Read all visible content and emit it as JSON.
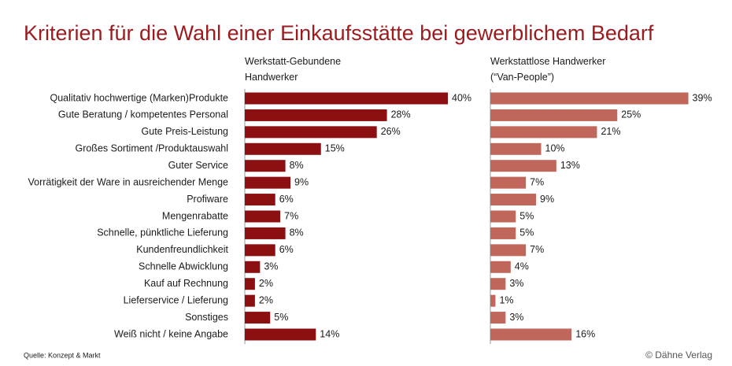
{
  "chart_data": {
    "type": "bar",
    "orientation": "horizontal",
    "title": "Kriterien für die Wahl einer Einkaufsstätte bei gewerblichem Bedarf",
    "categories": [
      "Qualitativ hochwertige (Marken)Produkte",
      "Gute Beratung / kompetentes Personal",
      "Gute Preis-Leistung",
      "Großes Sortiment /Produktauswahl",
      "Guter Service",
      "Vorrätigkeit der Ware in ausreichender Menge",
      "Profiware",
      "Mengenrabatte",
      "Schnelle, pünktliche Lieferung",
      "Kundenfreundlichkeit",
      "Schnelle Abwicklung",
      "Kauf auf Rechnung",
      "Lieferservice / Lieferung",
      "Sonstiges",
      "Weiß nicht / keine Angabe"
    ],
    "series": [
      {
        "name": "Werkstatt-Gebundene Handwerker",
        "color": "#8c0f12",
        "values": [
          40,
          28,
          26,
          15,
          8,
          9,
          6,
          7,
          8,
          6,
          3,
          2,
          2,
          5,
          14
        ],
        "value_labels": [
          "40%",
          "28%",
          "26%",
          "15%",
          "8%",
          "9%",
          "6%",
          "7%",
          "8%",
          "6%",
          "3%",
          "2%",
          "2%",
          "5%",
          "14%"
        ]
      },
      {
        "name": "Werkstattlose Handwerker (“Van-People”)",
        "color": "#c0665a",
        "values": [
          39,
          25,
          21,
          10,
          13,
          7,
          9,
          5,
          5,
          7,
          4,
          3,
          1,
          3,
          16
        ],
        "value_labels": [
          "39%",
          "25%",
          "21%",
          "10%",
          "13%",
          "7%",
          "9%",
          "5%",
          "5%",
          "7%",
          "4%",
          "3%",
          "1%",
          "3%",
          "16%"
        ]
      }
    ],
    "source": "Quelle: Konzept & Markt",
    "credit": "© Dähne Verlag"
  }
}
